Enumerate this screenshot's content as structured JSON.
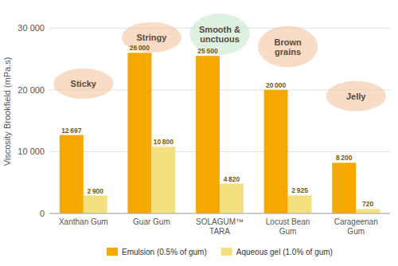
{
  "chart_data": {
    "type": "bar",
    "categories": [
      "Xanthan Gum",
      "Guar Gum",
      "SOLAGUM™\nTARA",
      "Locust Bean\nGum",
      "Carageenan\nGum"
    ],
    "series": [
      {
        "name": "Emulsion (0.5% of gum)",
        "color": "#F5A800",
        "values": [
          12697,
          26000,
          25500,
          20000,
          8200
        ],
        "value_labels": [
          "12 697",
          "26 000",
          "25 500",
          "20 000",
          "8 200"
        ]
      },
      {
        "name": "Aqueous gel (1.0% of gum)",
        "color": "#F5E080",
        "values": [
          2900,
          10800,
          4820,
          2925,
          720
        ],
        "value_labels": [
          "2 900",
          "10 800",
          "4 820",
          "2 925",
          "720"
        ]
      }
    ],
    "ylabel": "Viscosity Brookfield (mPa.s)",
    "ylim": [
      0,
      33000
    ],
    "yticks": [
      0,
      {
        "value": 10000,
        "label": "10 000"
      },
      {
        "value": 20000,
        "label": "20 000"
      },
      {
        "value": 30000,
        "label": "30 000"
      }
    ],
    "grid": true,
    "legend": "bottom",
    "data_labels": true,
    "annotations": [
      {
        "text": "Sticky",
        "x": "Xanthan Gum",
        "y": 21000,
        "color": "#F5C4A0"
      },
      {
        "text": "Stringy",
        "x": "Guar Gum",
        "y": 28500,
        "color": "#F5C4A0"
      },
      {
        "text": "Smooth &\nunctuous",
        "x": "SOLAGUM™\nTARA",
        "y": 29000,
        "color": "#C8E6C9"
      },
      {
        "text": "Brown\ngrains",
        "x": "Locust Bean\nGum",
        "y": 27000,
        "color": "#F5C4A0"
      },
      {
        "text": "Jelly",
        "x": "Carageenan\nGum",
        "y": 19000,
        "color": "#F5C4A0"
      }
    ]
  }
}
